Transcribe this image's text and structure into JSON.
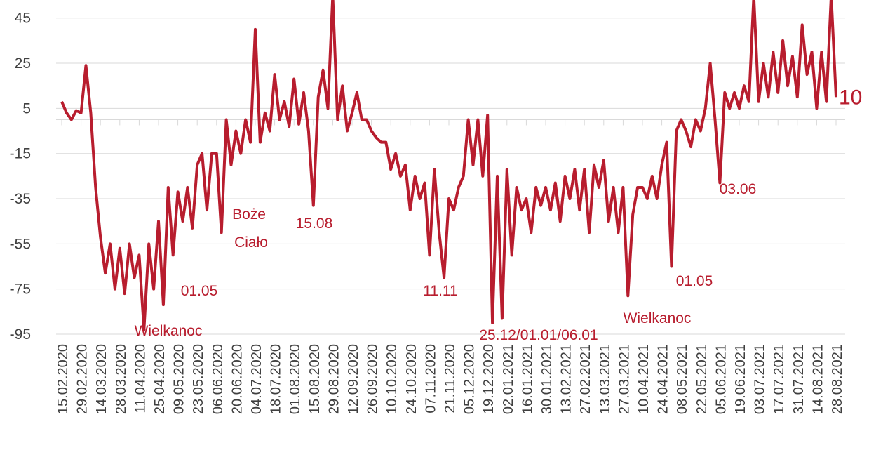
{
  "chart_data": {
    "type": "line",
    "categories": [
      "15.02.2020",
      null,
      null,
      null,
      "29.02.2020",
      null,
      null,
      null,
      "14.03.2020",
      null,
      null,
      null,
      "28.03.2020",
      null,
      null,
      null,
      "11.04.2020",
      null,
      null,
      null,
      "25.04.2020",
      null,
      null,
      null,
      "09.05.2020",
      null,
      null,
      null,
      "23.05.2020",
      null,
      null,
      null,
      "06.06.2020",
      null,
      null,
      null,
      "20.06.2020",
      null,
      null,
      null,
      "04.07.2020",
      null,
      null,
      null,
      "18.07.2020",
      null,
      null,
      null,
      "01.08.2020",
      null,
      null,
      null,
      "15.08.2020",
      null,
      null,
      null,
      "29.08.2020",
      null,
      null,
      null,
      "12.09.2020",
      null,
      null,
      null,
      "26.09.2020",
      null,
      null,
      null,
      "10.10.2020",
      null,
      null,
      null,
      "24.10.2020",
      null,
      null,
      null,
      "07.11.2020",
      null,
      null,
      null,
      "21.11.2020",
      null,
      null,
      null,
      "05.12.2020",
      null,
      null,
      null,
      "19.12.2020",
      null,
      null,
      null,
      "02.01.2021",
      null,
      null,
      null,
      "16.01.2021",
      null,
      null,
      null,
      "30.01.2021",
      null,
      null,
      null,
      "13.02.2021",
      null,
      null,
      null,
      "27.02.2021",
      null,
      null,
      null,
      "13.03.2021",
      null,
      null,
      null,
      "27.03.2021",
      null,
      null,
      null,
      "10.04.2021",
      null,
      null,
      null,
      "24.04.2021",
      null,
      null,
      null,
      "08.05.2021",
      null,
      null,
      null,
      "22.05.2021",
      null,
      null,
      null,
      "05.06.2021",
      null,
      null,
      null,
      "19.06.2021",
      null,
      null,
      null,
      "03.07.2021",
      null,
      null,
      null,
      "17.07.2021",
      null,
      null,
      null,
      "31.07.2021",
      null,
      null,
      null,
      "14.08.2021",
      null,
      null,
      null,
      "28.08.2021"
    ],
    "series": [
      {
        "name": null,
        "color": "#b81d2e",
        "values": [
          8,
          3,
          0,
          4,
          3,
          24,
          3,
          -30,
          -52,
          -68,
          -55,
          -75,
          -57,
          -77,
          -55,
          -70,
          -60,
          -93,
          -55,
          -75,
          -45,
          -82,
          -30,
          -60,
          -32,
          -45,
          -30,
          -48,
          -20,
          -15,
          -40,
          -15,
          -15,
          -50,
          0,
          -20,
          -5,
          -15,
          0,
          -10,
          40,
          -10,
          3,
          -5,
          20,
          0,
          8,
          -3,
          18,
          -2,
          12,
          -5,
          -38,
          10,
          22,
          5,
          55,
          0,
          15,
          -5,
          3,
          12,
          0,
          0,
          -5,
          -8,
          -10,
          -10,
          -22,
          -15,
          -25,
          -20,
          -40,
          -25,
          -35,
          -28,
          -60,
          -22,
          -50,
          -70,
          -35,
          -40,
          -30,
          -25,
          0,
          -20,
          0,
          -25,
          2,
          -90,
          -25,
          -88,
          -22,
          -60,
          -30,
          -40,
          -35,
          -50,
          -30,
          -38,
          -30,
          -40,
          -28,
          -45,
          -25,
          -35,
          -22,
          -40,
          -22,
          -50,
          -20,
          -30,
          -18,
          -45,
          -30,
          -50,
          -30,
          -78,
          -42,
          -30,
          -30,
          -35,
          -25,
          -35,
          -20,
          -10,
          -65,
          -5,
          0,
          -5,
          -12,
          0,
          -5,
          5,
          25,
          0,
          -28,
          12,
          5,
          12,
          5,
          15,
          8,
          55,
          8,
          25,
          10,
          30,
          12,
          35,
          15,
          28,
          10,
          42,
          20,
          30,
          5,
          30,
          8,
          55,
          10
        ]
      }
    ],
    "ylim": [
      -95,
      53
    ],
    "yticks": [
      -95,
      -75,
      -55,
      -35,
      -15,
      5,
      25,
      45
    ],
    "grid": true,
    "annotations": [
      "Wielkanoc",
      "01.05",
      "Boże",
      "Ciało",
      "15.08",
      "11.11",
      "25.12/01.01/06.01",
      "Wielkanoc",
      "01.05",
      "03.06"
    ]
  }
}
